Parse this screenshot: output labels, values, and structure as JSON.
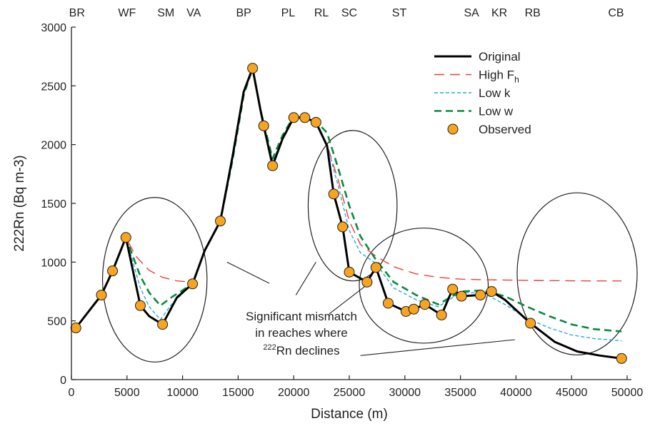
{
  "chart_data": {
    "type": "line",
    "xlabel": "Distance (m)",
    "ylabel": "222Rn (Bq m-3)",
    "xlim": [
      0,
      50000
    ],
    "ylim": [
      0,
      3000
    ],
    "xticks": [
      0,
      5000,
      10000,
      15000,
      20000,
      25000,
      30000,
      35000,
      40000,
      45000,
      50000
    ],
    "yticks": [
      0,
      500,
      1000,
      1500,
      2000,
      2500,
      3000
    ],
    "grid": false,
    "legend_position": "top-right",
    "top_labels": [
      {
        "label": "BR",
        "x": 500
      },
      {
        "label": "WF",
        "x": 5000
      },
      {
        "label": "SM",
        "x": 8500
      },
      {
        "label": "VA",
        "x": 11000
      },
      {
        "label": "BP",
        "x": 15500
      },
      {
        "label": "PL",
        "x": 19500
      },
      {
        "label": "RL",
        "x": 22500
      },
      {
        "label": "SC",
        "x": 25000
      },
      {
        "label": "ST",
        "x": 29500
      },
      {
        "label": "SA",
        "x": 36000
      },
      {
        "label": "KR",
        "x": 38500
      },
      {
        "label": "RB",
        "x": 41500
      },
      {
        "label": "CB",
        "x": 49000
      }
    ],
    "series": [
      {
        "name": "Original",
        "style": "solid",
        "color": "#000000",
        "x": [
          400,
          2700,
          3700,
          4900,
          6200,
          7000,
          8200,
          9500,
          10900,
          12000,
          13400,
          14500,
          15500,
          16300,
          17000,
          17300,
          18100,
          19000,
          20000,
          21000,
          22000,
          23000,
          23600,
          24400,
          25000,
          26600,
          27400,
          28500,
          30100,
          30800,
          31800,
          33300,
          34300,
          35100,
          36800,
          37800,
          39000,
          41300,
          43500,
          45500,
          47500,
          49500
        ],
        "y": [
          440,
          720,
          925,
          1210,
          630,
          540,
          470,
          700,
          815,
          1100,
          1350,
          1900,
          2450,
          2650,
          2300,
          2160,
          1820,
          2050,
          2230,
          2230,
          2190,
          1990,
          1580,
          1300,
          915,
          830,
          955,
          650,
          580,
          600,
          640,
          550,
          770,
          710,
          720,
          750,
          680,
          480,
          320,
          240,
          205,
          180
        ]
      },
      {
        "name": "High Fh",
        "style": "long-dash",
        "color": "#e8413d",
        "x": [
          400,
          2700,
          3700,
          4900,
          5800,
          7000,
          8200,
          9500,
          10900,
          12000,
          13400,
          14500,
          15500,
          16300,
          17000,
          18100,
          19000,
          20000,
          21000,
          22000,
          23000,
          24000,
          25000,
          26000,
          27400,
          29000,
          31000,
          33000,
          35000,
          37000,
          39000,
          41000,
          43000,
          45000,
          47000,
          49500
        ],
        "y": [
          440,
          720,
          925,
          1210,
          1050,
          930,
          870,
          840,
          830,
          1100,
          1350,
          1900,
          2450,
          2650,
          2300,
          1850,
          2050,
          2230,
          2230,
          2190,
          2000,
          1700,
          1350,
          1150,
          1050,
          960,
          900,
          870,
          855,
          850,
          848,
          845,
          843,
          841,
          840,
          840
        ]
      },
      {
        "name": "Low k",
        "style": "short-dash",
        "color": "#27a9e1",
        "x": [
          400,
          2700,
          3700,
          4900,
          6200,
          7000,
          8000,
          9000,
          10900,
          12000,
          13400,
          14500,
          15500,
          16300,
          17000,
          18100,
          19000,
          20000,
          21000,
          22000,
          23000,
          24000,
          25000,
          26000,
          27400,
          29000,
          31000,
          33000,
          35000,
          37000,
          39000,
          41000,
          43000,
          45000,
          47000,
          49500
        ],
        "y": [
          440,
          720,
          925,
          1210,
          780,
          620,
          510,
          640,
          815,
          1100,
          1350,
          1900,
          2450,
          2650,
          2300,
          1860,
          2050,
          2230,
          2230,
          2190,
          2000,
          1650,
          1270,
          1080,
          990,
          780,
          680,
          620,
          740,
          740,
          640,
          520,
          440,
          380,
          350,
          330
        ]
      },
      {
        "name": "Low w",
        "style": "dash",
        "color": "#0a8a3c",
        "x": [
          400,
          2700,
          3700,
          4900,
          6200,
          7000,
          8000,
          9000,
          10900,
          12000,
          13400,
          14500,
          15500,
          16300,
          17000,
          18100,
          19000,
          20000,
          21000,
          22000,
          23000,
          24000,
          25000,
          26000,
          27400,
          29000,
          31000,
          33000,
          35000,
          37000,
          39000,
          41000,
          43000,
          45000,
          47000,
          49500
        ],
        "y": [
          440,
          720,
          925,
          1210,
          880,
          740,
          630,
          700,
          815,
          1100,
          1350,
          1870,
          2420,
          2650,
          2300,
          1880,
          2080,
          2240,
          2230,
          2200,
          2100,
          1800,
          1480,
          1220,
          1020,
          830,
          720,
          640,
          750,
          760,
          710,
          620,
          540,
          470,
          430,
          410
        ]
      },
      {
        "name": "Observed",
        "style": "markers",
        "color": "#f7a520",
        "x": [
          400,
          2700,
          3700,
          4900,
          6200,
          8200,
          10900,
          13400,
          16300,
          17300,
          18100,
          20000,
          21000,
          22000,
          23600,
          24400,
          25000,
          26600,
          27400,
          28500,
          30100,
          30800,
          31800,
          33300,
          34300,
          35100,
          36800,
          37800,
          41300,
          49500
        ],
        "y": [
          440,
          720,
          925,
          1210,
          630,
          470,
          815,
          1350,
          2650,
          2160,
          1820,
          2230,
          2230,
          2190,
          1580,
          1300,
          915,
          830,
          955,
          650,
          580,
          600,
          640,
          550,
          770,
          710,
          720,
          750,
          480,
          180
        ]
      }
    ],
    "legend": [
      "Original",
      "High F",
      "Low k",
      "Low w",
      "Observed"
    ],
    "legend_subscript": "h",
    "annotation": {
      "lines": [
        "Significant mismatch",
        "in reaches where",
        "Rn declines"
      ],
      "superscript": "222"
    },
    "circles": [
      {
        "cx": 7500,
        "cy": 850,
        "rx": 4700,
        "ry": 700
      },
      {
        "cx": 25300,
        "cy": 1480,
        "rx": 4000,
        "ry": 640
      },
      {
        "cx": 31700,
        "cy": 800,
        "rx": 5800,
        "ry": 490
      },
      {
        "cx": 45500,
        "cy": 900,
        "rx": 5400,
        "ry": 690
      }
    ],
    "pointers": [
      {
        "from": [
          14000,
          1000
        ],
        "to": [
          17800,
          820
        ]
      },
      {
        "from": [
          22000,
          1000
        ],
        "to": [
          20200,
          720
        ]
      },
      {
        "from": [
          26500,
          800
        ],
        "to": [
          23200,
          560
        ]
      },
      {
        "from": [
          39900,
          340
        ],
        "to": [
          26000,
          205
        ]
      }
    ]
  }
}
